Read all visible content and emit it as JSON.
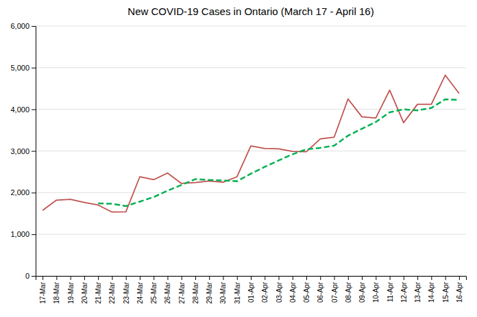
{
  "chart_data": {
    "type": "line",
    "title": "New COVID-19 Cases in Ontario (March 17 - April 16)",
    "categories": [
      "17-Mar",
      "18-Mar",
      "19-Mar",
      "20-Mar",
      "21-Mar",
      "22-Mar",
      "23-Mar",
      "24-Mar",
      "25-Mar",
      "26-Mar",
      "27-Mar",
      "28-Mar",
      "29-Mar",
      "30-Mar",
      "31-Mar",
      "01-Apr",
      "02-Apr",
      "03-Apr",
      "04-Apr",
      "05-Apr",
      "06-Apr",
      "07-Apr",
      "08-Apr",
      "09-Apr",
      "10-Apr",
      "11-Apr",
      "12-Apr",
      "13-Apr",
      "14-Apr",
      "15-Apr",
      "16-Apr"
    ],
    "series": [
      {
        "color": "#C0504D",
        "line_style": "solid",
        "values": [
          1575,
          1820,
          1840,
          1766,
          1702,
          1533,
          1540,
          2380,
          2310,
          2470,
          2220,
          2240,
          2280,
          2250,
          2380,
          3120,
          3060,
          3050,
          2990,
          2980,
          3290,
          3330,
          4250,
          3820,
          3790,
          4460,
          3680,
          4120,
          4120,
          4820,
          4380
        ]
      },
      {
        "color": "#00B050",
        "line_style": "dashed",
        "values": [
          null,
          null,
          null,
          null,
          1740.6,
          1732.2,
          1676.2,
          1784.2,
          1893,
          2046.6,
          2184,
          2324,
          2304,
          2292,
          2274,
          2454,
          2618,
          2772,
          2920,
          3040,
          3074,
          3128,
          3368,
          3534,
          3696,
          3930,
          4000,
          3974,
          4034,
          4240,
          4224
        ]
      }
    ],
    "ylim": [
      0,
      6000
    ],
    "yticks": [
      0,
      {
        "value": 1000,
        "label": "1,000"
      },
      {
        "value": 2000,
        "label": "2,000"
      },
      {
        "value": 3000,
        "label": "3,000"
      },
      {
        "value": 4000,
        "label": "4,000"
      },
      {
        "value": 5000,
        "label": "5,000"
      },
      {
        "value": 6000,
        "label": "6,000"
      }
    ],
    "grid": true
  }
}
